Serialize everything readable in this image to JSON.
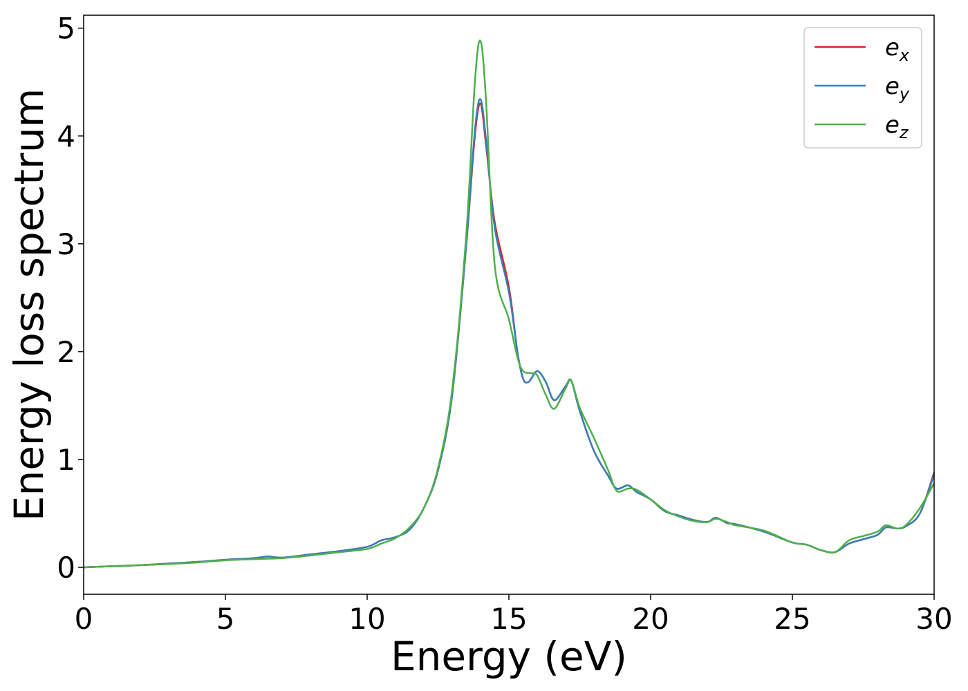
{
  "chart_data": {
    "type": "line",
    "title": "",
    "xlabel": "Energy (eV)",
    "ylabel": "Energy loss spectrum",
    "xlim": [
      0,
      30
    ],
    "ylim": [
      -0.25,
      5.12
    ],
    "x_ticks": [
      "0",
      "5",
      "10",
      "15",
      "20",
      "25",
      "30"
    ],
    "y_ticks": [
      "0",
      "1",
      "2",
      "3",
      "4",
      "5"
    ],
    "grid": false,
    "legend_position": "top-right",
    "series": [
      {
        "name": "e",
        "subscript": "x",
        "color": "#d62728",
        "points": [
          [
            0,
            0.0
          ],
          [
            1,
            0.01
          ],
          [
            2,
            0.02
          ],
          [
            3,
            0.035
          ],
          [
            4,
            0.05
          ],
          [
            5,
            0.07
          ],
          [
            6,
            0.085
          ],
          [
            6.5,
            0.1
          ],
          [
            7,
            0.09
          ],
          [
            8,
            0.12
          ],
          [
            9,
            0.15
          ],
          [
            10,
            0.19
          ],
          [
            10.5,
            0.25
          ],
          [
            11,
            0.28
          ],
          [
            11.5,
            0.35
          ],
          [
            12,
            0.55
          ],
          [
            12.5,
            0.9
          ],
          [
            13,
            1.6
          ],
          [
            13.5,
            3.0
          ],
          [
            13.8,
            4.0
          ],
          [
            14,
            4.3
          ],
          [
            14.2,
            3.9
          ],
          [
            14.5,
            3.2
          ],
          [
            15,
            2.6
          ],
          [
            15.3,
            2.0
          ],
          [
            15.5,
            1.75
          ],
          [
            15.7,
            1.72
          ],
          [
            16,
            1.82
          ],
          [
            16.3,
            1.72
          ],
          [
            16.6,
            1.55
          ],
          [
            17,
            1.68
          ],
          [
            17.2,
            1.73
          ],
          [
            17.5,
            1.45
          ],
          [
            18,
            1.08
          ],
          [
            18.5,
            0.85
          ],
          [
            18.8,
            0.73
          ],
          [
            19.2,
            0.76
          ],
          [
            19.5,
            0.7
          ],
          [
            20,
            0.63
          ],
          [
            20.5,
            0.52
          ],
          [
            21,
            0.48
          ],
          [
            21.5,
            0.44
          ],
          [
            22,
            0.42
          ],
          [
            22.3,
            0.46
          ],
          [
            22.7,
            0.41
          ],
          [
            23,
            0.4
          ],
          [
            24,
            0.33
          ],
          [
            25,
            0.23
          ],
          [
            25.5,
            0.21
          ],
          [
            26,
            0.16
          ],
          [
            26.5,
            0.14
          ],
          [
            27,
            0.22
          ],
          [
            27.5,
            0.26
          ],
          [
            28,
            0.3
          ],
          [
            28.3,
            0.37
          ],
          [
            28.7,
            0.36
          ],
          [
            29,
            0.38
          ],
          [
            29.5,
            0.5
          ],
          [
            30,
            0.88
          ]
        ]
      },
      {
        "name": "e",
        "subscript": "y",
        "color": "#377eb8",
        "points": [
          [
            0,
            0.0
          ],
          [
            1,
            0.01
          ],
          [
            2,
            0.02
          ],
          [
            3,
            0.035
          ],
          [
            4,
            0.05
          ],
          [
            5,
            0.07
          ],
          [
            6,
            0.085
          ],
          [
            6.5,
            0.1
          ],
          [
            7,
            0.09
          ],
          [
            8,
            0.12
          ],
          [
            9,
            0.15
          ],
          [
            10,
            0.19
          ],
          [
            10.5,
            0.25
          ],
          [
            11,
            0.28
          ],
          [
            11.5,
            0.35
          ],
          [
            12,
            0.55
          ],
          [
            12.5,
            0.9
          ],
          [
            13,
            1.6
          ],
          [
            13.5,
            3.0
          ],
          [
            13.8,
            4.05
          ],
          [
            14,
            4.34
          ],
          [
            14.2,
            3.95
          ],
          [
            14.5,
            3.15
          ],
          [
            15,
            2.55
          ],
          [
            15.3,
            2.0
          ],
          [
            15.5,
            1.75
          ],
          [
            15.7,
            1.72
          ],
          [
            16,
            1.82
          ],
          [
            16.3,
            1.72
          ],
          [
            16.6,
            1.55
          ],
          [
            17,
            1.68
          ],
          [
            17.2,
            1.73
          ],
          [
            17.5,
            1.45
          ],
          [
            18,
            1.08
          ],
          [
            18.5,
            0.85
          ],
          [
            18.8,
            0.73
          ],
          [
            19.2,
            0.76
          ],
          [
            19.5,
            0.7
          ],
          [
            20,
            0.63
          ],
          [
            20.5,
            0.52
          ],
          [
            21,
            0.48
          ],
          [
            21.5,
            0.44
          ],
          [
            22,
            0.42
          ],
          [
            22.3,
            0.46
          ],
          [
            22.7,
            0.41
          ],
          [
            23,
            0.4
          ],
          [
            24,
            0.33
          ],
          [
            25,
            0.23
          ],
          [
            25.5,
            0.21
          ],
          [
            26,
            0.16
          ],
          [
            26.5,
            0.14
          ],
          [
            27,
            0.22
          ],
          [
            27.5,
            0.26
          ],
          [
            28,
            0.3
          ],
          [
            28.3,
            0.37
          ],
          [
            28.7,
            0.36
          ],
          [
            29,
            0.38
          ],
          [
            29.5,
            0.5
          ],
          [
            30,
            0.86
          ]
        ]
      },
      {
        "name": "e",
        "subscript": "z",
        "color": "#4daf4a",
        "points": [
          [
            0,
            0.0
          ],
          [
            1,
            0.01
          ],
          [
            2,
            0.02
          ],
          [
            3,
            0.03
          ],
          [
            4,
            0.045
          ],
          [
            5,
            0.065
          ],
          [
            6,
            0.075
          ],
          [
            6.5,
            0.08
          ],
          [
            7,
            0.085
          ],
          [
            8,
            0.11
          ],
          [
            9,
            0.14
          ],
          [
            10,
            0.17
          ],
          [
            10.5,
            0.22
          ],
          [
            11,
            0.27
          ],
          [
            11.5,
            0.37
          ],
          [
            12,
            0.55
          ],
          [
            12.5,
            0.92
          ],
          [
            13,
            1.65
          ],
          [
            13.5,
            3.1
          ],
          [
            13.8,
            4.5
          ],
          [
            14,
            4.88
          ],
          [
            14.2,
            4.3
          ],
          [
            14.5,
            2.8
          ],
          [
            15,
            2.3
          ],
          [
            15.3,
            1.95
          ],
          [
            15.5,
            1.82
          ],
          [
            15.8,
            1.8
          ],
          [
            16,
            1.78
          ],
          [
            16.3,
            1.6
          ],
          [
            16.6,
            1.47
          ],
          [
            17,
            1.66
          ],
          [
            17.2,
            1.73
          ],
          [
            17.5,
            1.48
          ],
          [
            18,
            1.2
          ],
          [
            18.5,
            0.9
          ],
          [
            18.8,
            0.71
          ],
          [
            19.2,
            0.73
          ],
          [
            19.5,
            0.72
          ],
          [
            20,
            0.63
          ],
          [
            20.5,
            0.53
          ],
          [
            21,
            0.47
          ],
          [
            21.5,
            0.43
          ],
          [
            22,
            0.42
          ],
          [
            22.3,
            0.45
          ],
          [
            22.7,
            0.42
          ],
          [
            23,
            0.39
          ],
          [
            24,
            0.34
          ],
          [
            25,
            0.23
          ],
          [
            25.5,
            0.21
          ],
          [
            26,
            0.16
          ],
          [
            26.5,
            0.14
          ],
          [
            27,
            0.25
          ],
          [
            27.5,
            0.29
          ],
          [
            28,
            0.33
          ],
          [
            28.3,
            0.39
          ],
          [
            28.7,
            0.36
          ],
          [
            29,
            0.39
          ],
          [
            29.5,
            0.55
          ],
          [
            30,
            0.78
          ]
        ]
      }
    ]
  }
}
